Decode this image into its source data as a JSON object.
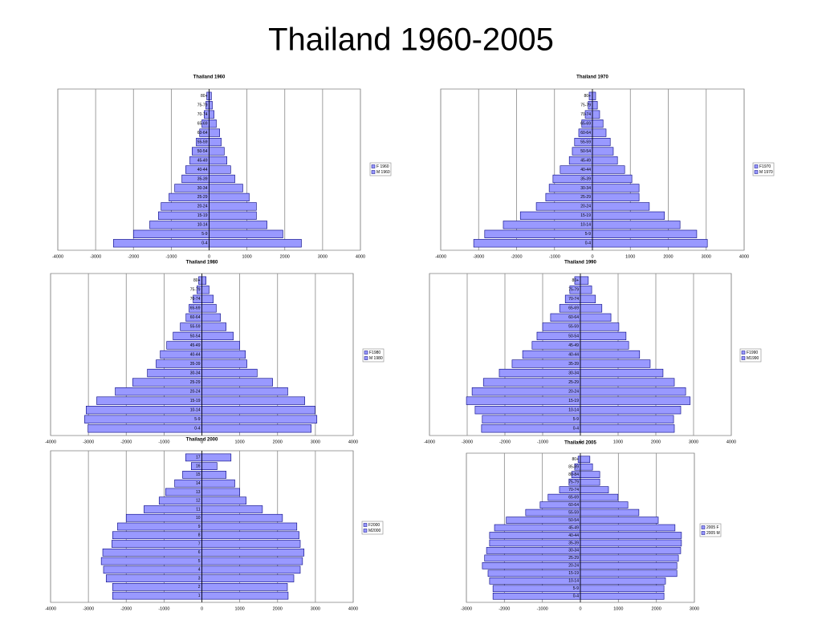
{
  "title": "Thailand 1960-2005",
  "chart_data": [
    {
      "type": "bar",
      "horizontal": true,
      "title": "Thailand 1960",
      "categories": [
        "0-4",
        "5-9",
        "10-14",
        "15-19",
        "20-24",
        "25-29",
        "30-34",
        "35-39",
        "40-44",
        "45-49",
        "50-54",
        "55-59",
        "60-64",
        "65-69",
        "70-74",
        "75-79",
        "80+"
      ],
      "series": [
        {
          "name": "F 1960",
          "color": "#9999ff",
          "values": [
            -2530,
            -2000,
            -1570,
            -1340,
            -1270,
            -1060,
            -910,
            -720,
            -620,
            -510,
            -450,
            -340,
            -250,
            -190,
            -130,
            -85,
            -60
          ]
        },
        {
          "name": "M 1960",
          "color": "#9999ff",
          "values": [
            2440,
            1950,
            1530,
            1250,
            1250,
            1060,
            890,
            680,
            570,
            470,
            400,
            320,
            280,
            190,
            130,
            85,
            60
          ]
        }
      ],
      "xlim": [
        -4000,
        4000
      ],
      "xticks": [
        -4000,
        -3000,
        -2000,
        -1000,
        0,
        1000,
        2000,
        3000,
        4000
      ],
      "grid": true,
      "legend": "right"
    },
    {
      "type": "bar",
      "horizontal": true,
      "title": "Thailand 1970",
      "categories": [
        "0-4",
        "5-9",
        "10-14",
        "15-19",
        "20-24",
        "25-29",
        "30-34",
        "35-39",
        "40-44",
        "45-49",
        "50-54",
        "55-59",
        "60-64",
        "65-69",
        "70-74",
        "75-79",
        "80+"
      ],
      "series": [
        {
          "name": "F1970",
          "color": "#9999ff",
          "values": [
            -3130,
            -2840,
            -2350,
            -1900,
            -1480,
            -1230,
            -1140,
            -1040,
            -850,
            -610,
            -530,
            -470,
            -360,
            -280,
            -190,
            -110,
            -85
          ]
        },
        {
          "name": "M 1970",
          "color": "#9999ff",
          "values": [
            3030,
            2750,
            2310,
            1900,
            1500,
            1230,
            1230,
            1040,
            850,
            660,
            550,
            470,
            360,
            280,
            190,
            130,
            85
          ]
        }
      ],
      "xlim": [
        -4000,
        4000
      ],
      "xticks": [
        -4000,
        -3000,
        -2000,
        -1000,
        0,
        1000,
        2000,
        3000,
        4000
      ],
      "grid": true,
      "legend": "right"
    },
    {
      "type": "bar",
      "horizontal": true,
      "title": "Thailand 1980",
      "categories": [
        "0-4",
        "5-9",
        "10-14",
        "15-19",
        "20-24",
        "25-29",
        "30-34",
        "35-39",
        "40-44",
        "45-49",
        "50-54",
        "55-59",
        "60-64",
        "65-69",
        "70-74",
        "75-79",
        "80+"
      ],
      "series": [
        {
          "name": "F1980",
          "color": "#9999ff",
          "values": [
            -3010,
            -3100,
            -3060,
            -2780,
            -2290,
            -1830,
            -1440,
            -1210,
            -1100,
            -930,
            -760,
            -570,
            -420,
            -340,
            -230,
            -130,
            -85
          ]
        },
        {
          "name": "M 1980",
          "color": "#9999ff",
          "values": [
            2890,
            3040,
            2990,
            2720,
            2270,
            1870,
            1460,
            1190,
            1150,
            1000,
            830,
            640,
            490,
            380,
            300,
            190,
            110
          ]
        }
      ],
      "xlim": [
        -4000,
        4000
      ],
      "xticks": [
        -4000,
        -3000,
        -2000,
        -1000,
        0,
        1000,
        2000,
        3000,
        4000
      ],
      "grid": true,
      "legend": "right"
    },
    {
      "type": "bar",
      "horizontal": true,
      "title": "Thailand 1990",
      "categories": [
        "0-4",
        "5-9",
        "10-14",
        "15-19",
        "20-24",
        "25-29",
        "30-34",
        "35-39",
        "40-44",
        "45-49",
        "50-54",
        "55-59",
        "60-64",
        "65-69",
        "70-74",
        "75-79",
        "80+"
      ],
      "series": [
        {
          "name": "F1990",
          "color": "#9999ff",
          "values": [
            -2620,
            -2600,
            -2790,
            -3020,
            -2870,
            -2570,
            -2150,
            -1810,
            -1530,
            -1280,
            -1150,
            -1000,
            -790,
            -550,
            -400,
            -280,
            -150
          ]
        },
        {
          "name": "M1990",
          "color": "#9999ff",
          "values": [
            2490,
            2470,
            2660,
            2910,
            2790,
            2490,
            2190,
            1850,
            1570,
            1280,
            1210,
            1020,
            810,
            570,
            400,
            300,
            210
          ]
        }
      ],
      "xlim": [
        -4000,
        4000
      ],
      "xticks": [
        -4000,
        -3000,
        -2000,
        -1000,
        0,
        1000,
        2000,
        3000,
        4000
      ],
      "grid": true,
      "legend": "right"
    },
    {
      "type": "bar",
      "horizontal": true,
      "title": "Thailand 2000",
      "categories": [
        "1",
        "2",
        "3",
        "4",
        "5",
        "6",
        "7",
        "8",
        "9",
        "10",
        "11",
        "12",
        "13",
        "14",
        "15",
        "16",
        "17"
      ],
      "series": [
        {
          "name": "F2000",
          "color": "#9999ff",
          "values": [
            -2360,
            -2360,
            -2530,
            -2600,
            -2660,
            -2620,
            -2380,
            -2360,
            -2230,
            -2000,
            -1530,
            -1130,
            -960,
            -720,
            -510,
            -280,
            -430
          ]
        },
        {
          "name": "M2000",
          "color": "#9999ff",
          "values": [
            2280,
            2260,
            2430,
            2600,
            2660,
            2700,
            2600,
            2570,
            2510,
            2130,
            1600,
            1170,
            1000,
            870,
            640,
            400,
            770
          ]
        }
      ],
      "xlim": [
        -4000,
        4000
      ],
      "xticks": [
        -4000,
        -3000,
        -2000,
        -1000,
        0,
        1000,
        2000,
        3000,
        4000
      ],
      "grid": true,
      "legend": "right"
    },
    {
      "type": "bar",
      "horizontal": true,
      "title": "Thailand 2005",
      "categories": [
        "0-4",
        "5-9",
        "10-14",
        "15-19",
        "20-24",
        "25-29",
        "30-34",
        "35-39",
        "40-44",
        "45-49",
        "50-54",
        "55-59",
        "60-64",
        "65-69",
        "70-74",
        "75-79",
        "80-84",
        "85-89",
        "80+"
      ],
      "series": [
        {
          "name": "2005 F",
          "color": "#9999ff",
          "values": [
            -2300,
            -2300,
            -2390,
            -2430,
            -2580,
            -2520,
            -2470,
            -2390,
            -2390,
            -2260,
            -1950,
            -1440,
            -1060,
            -850,
            -550,
            -300,
            -230,
            -150,
            -60
          ]
        },
        {
          "name": "2005 M",
          "color": "#9999ff",
          "values": [
            2200,
            2200,
            2240,
            2540,
            2540,
            2580,
            2640,
            2660,
            2660,
            2490,
            2050,
            1540,
            1250,
            990,
            740,
            510,
            510,
            320,
            250
          ]
        }
      ],
      "xlim": [
        -3000,
        3000
      ],
      "xticks": [
        -3000,
        -2000,
        -1000,
        0,
        1000,
        2000,
        3000
      ],
      "grid": true,
      "legend": "right"
    }
  ]
}
